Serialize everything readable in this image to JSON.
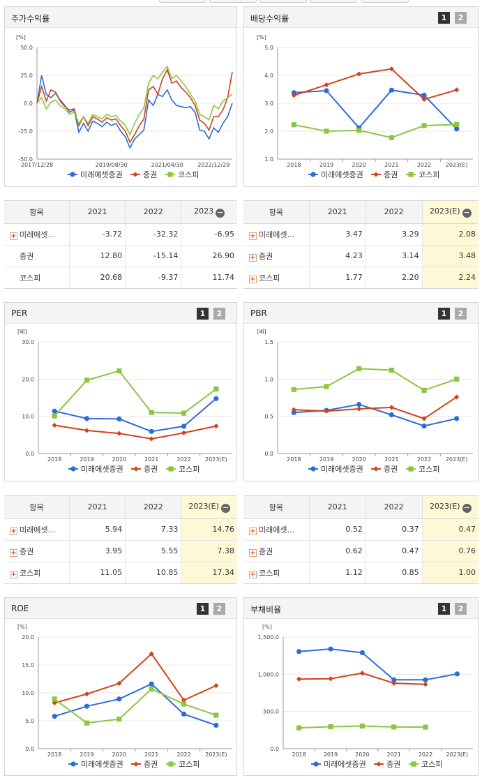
{
  "colors": {
    "mirae": "#2d6bd8",
    "sec": "#d2411a",
    "kospi": "#8cc63f"
  },
  "legend": [
    "미래에셋증권",
    "증권",
    "코스피"
  ],
  "pager": [
    "1",
    "2"
  ],
  "panels": {
    "stock": {
      "title": "주가수익률",
      "unit": "[%]",
      "y_ticks": [
        "50.0",
        "25.0",
        "0.0",
        "-25.0",
        "-50.0"
      ],
      "x_ticks": [
        "2017/12/28",
        "2019/08/30",
        "2021/04/30",
        "2022/12/29"
      ]
    },
    "dividend": {
      "title": "배당수익률",
      "unit": "[%]",
      "y_ticks": [
        "5.0",
        "4.0",
        "3.0",
        "2.0",
        "1.0"
      ],
      "x_ticks": [
        "2018",
        "2019",
        "2020",
        "2021",
        "2022",
        "2023(E)"
      ]
    },
    "per": {
      "title": "PER",
      "unit": "[배]",
      "y_ticks": [
        "30.0",
        "20.0",
        "10.0",
        "0.0"
      ],
      "x_ticks": [
        "2018",
        "2019",
        "2020",
        "2021",
        "2022",
        "2023(E)"
      ]
    },
    "pbr": {
      "title": "PBR",
      "unit": "[배]",
      "y_ticks": [
        "1.5",
        "1.0",
        "0.5",
        "0.0"
      ],
      "x_ticks": [
        "2018",
        "2019",
        "2020",
        "2021",
        "2022",
        "2023(E)"
      ]
    },
    "roe": {
      "title": "ROE",
      "unit": "[%]",
      "y_ticks": [
        "20.0",
        "15.0",
        "10.0",
        "5.0",
        "0.0"
      ],
      "x_ticks": [
        "2018",
        "2019",
        "2020",
        "2021",
        "2022",
        "2023(E)"
      ]
    },
    "debt": {
      "title": "부채비율",
      "unit": "[%]",
      "y_ticks": [
        "1,500.0",
        "1,000.0",
        "500.0",
        "0.0"
      ],
      "x_ticks": [
        "2018",
        "2019",
        "2020",
        "2021",
        "2022",
        "2023(E)"
      ]
    }
  },
  "tables": {
    "stock": {
      "headers": [
        "항목",
        "2021",
        "2022",
        "2023"
      ],
      "rows": [
        {
          "name": "미래에셋…",
          "plus": true,
          "values": [
            "-3.72",
            "-32.32",
            "-6.95"
          ]
        },
        {
          "name": "증권",
          "plus": false,
          "values": [
            "12.80",
            "-15.14",
            "26.90"
          ]
        },
        {
          "name": "코스피",
          "plus": false,
          "values": [
            "20.68",
            "-9.37",
            "11.74"
          ]
        }
      ]
    },
    "dividend": {
      "headers": [
        "항목",
        "2021",
        "2022",
        "2023(E)"
      ],
      "rows": [
        {
          "name": "미래에셋…",
          "plus": true,
          "values": [
            "3.47",
            "3.29",
            "2.08"
          ]
        },
        {
          "name": "증권",
          "plus": true,
          "values": [
            "4.23",
            "3.14",
            "3.48"
          ]
        },
        {
          "name": "코스피",
          "plus": true,
          "values": [
            "1.77",
            "2.20",
            "2.24"
          ]
        }
      ]
    },
    "per": {
      "headers": [
        "항목",
        "2021",
        "2022",
        "2023(E)"
      ],
      "rows": [
        {
          "name": "미래에셋…",
          "plus": true,
          "values": [
            "5.94",
            "7.33",
            "14.76"
          ]
        },
        {
          "name": "증권",
          "plus": true,
          "values": [
            "3.95",
            "5.55",
            "7.38"
          ]
        },
        {
          "name": "코스피",
          "plus": true,
          "values": [
            "11.05",
            "10.85",
            "17.34"
          ]
        }
      ]
    },
    "pbr": {
      "headers": [
        "항목",
        "2021",
        "2022",
        "2023(E)"
      ],
      "rows": [
        {
          "name": "미래에셋…",
          "plus": true,
          "values": [
            "0.52",
            "0.37",
            "0.47"
          ]
        },
        {
          "name": "증권",
          "plus": true,
          "values": [
            "0.62",
            "0.47",
            "0.76"
          ]
        },
        {
          "name": "코스피",
          "plus": true,
          "values": [
            "1.12",
            "0.85",
            "1.00"
          ]
        }
      ]
    }
  },
  "chart_data": [
    {
      "id": "stock",
      "type": "line",
      "title": "주가수익률",
      "ylabel": "[%]",
      "ylim": [
        -50,
        50
      ],
      "x_ticks": [
        "2017/12/28",
        "2019/08/30",
        "2021/04/30",
        "2022/12/29"
      ],
      "x": [
        "2017/12",
        "2018/01",
        "2018/02",
        "2018/03",
        "2018/04",
        "2018/05",
        "2018/06",
        "2018/07",
        "2018/08",
        "2018/09",
        "2018/10",
        "2018/11",
        "2018/12",
        "2019/02",
        "2019/04",
        "2019/06",
        "2019/08",
        "2019/10",
        "2019/12",
        "2020/02",
        "2020/03",
        "2020/04",
        "2020/06",
        "2020/08",
        "2020/10",
        "2020/12",
        "2021/01",
        "2021/02",
        "2021/04",
        "2021/06",
        "2021/08",
        "2021/10",
        "2021/12",
        "2022/02",
        "2022/04",
        "2022/06",
        "2022/08",
        "2022/10",
        "2022/12",
        "2023/02",
        "2023/04",
        "2023/06",
        "2023/07"
      ],
      "series": [
        {
          "name": "미래에셋증권",
          "values": [
            0,
            25,
            8,
            5,
            9,
            3,
            -2,
            -8,
            -6,
            -26,
            -18,
            -25,
            -16,
            -18,
            -21,
            -17,
            -20,
            -18,
            -25,
            -30,
            -40,
            -32,
            -28,
            -24,
            3,
            -2,
            8,
            6,
            12,
            3,
            -2,
            -3,
            -4,
            -3,
            -8,
            -24,
            -25,
            -32,
            -22,
            -26,
            -18,
            -12,
            0
          ]
        },
        {
          "name": "증권",
          "values": [
            0,
            15,
            2,
            12,
            10,
            2,
            -3,
            -6,
            -5,
            -20,
            -12,
            -20,
            -12,
            -14,
            -17,
            -13,
            -15,
            -14,
            -20,
            -25,
            -35,
            -28,
            -20,
            -14,
            12,
            15,
            8,
            22,
            30,
            18,
            20,
            14,
            10,
            5,
            -2,
            -15,
            -18,
            -24,
            -12,
            -12,
            -6,
            5,
            28
          ]
        },
        {
          "name": "코스피",
          "values": [
            0,
            5,
            -5,
            1,
            3,
            -2,
            -5,
            -10,
            -8,
            -18,
            -12,
            -18,
            -10,
            -12,
            -14,
            -10,
            -12,
            -11,
            -16,
            -20,
            -28,
            -18,
            -10,
            -4,
            18,
            25,
            22,
            28,
            33,
            22,
            25,
            20,
            15,
            8,
            2,
            -10,
            -12,
            -15,
            -2,
            -5,
            2,
            5,
            8
          ]
        }
      ]
    },
    {
      "id": "dividend",
      "type": "line",
      "title": "배당수익률",
      "ylabel": "[%]",
      "ylim": [
        1,
        5
      ],
      "categories": [
        "2018",
        "2019",
        "2020",
        "2021",
        "2022",
        "2023(E)"
      ],
      "series": [
        {
          "name": "미래에셋증권",
          "values": [
            3.38,
            3.45,
            2.12,
            3.47,
            3.29,
            2.08
          ]
        },
        {
          "name": "증권",
          "values": [
            3.28,
            3.66,
            4.05,
            4.23,
            3.14,
            3.48
          ]
        },
        {
          "name": "코스피",
          "values": [
            2.23,
            2.0,
            2.03,
            1.77,
            2.2,
            2.24
          ]
        }
      ]
    },
    {
      "id": "per",
      "type": "line",
      "title": "PER",
      "ylabel": "[배]",
      "ylim": [
        0,
        30
      ],
      "categories": [
        "2018",
        "2019",
        "2020",
        "2021",
        "2022",
        "2023(E)"
      ],
      "series": [
        {
          "name": "미래에셋증권",
          "values": [
            11.4,
            9.4,
            9.3,
            5.94,
            7.33,
            14.76
          ]
        },
        {
          "name": "증권",
          "values": [
            7.6,
            6.2,
            5.4,
            3.95,
            5.55,
            7.38
          ]
        },
        {
          "name": "코스피",
          "values": [
            10.1,
            19.7,
            22.2,
            11.05,
            10.85,
            17.34
          ]
        }
      ]
    },
    {
      "id": "pbr",
      "type": "line",
      "title": "PBR",
      "ylabel": "[배]",
      "ylim": [
        0,
        1.5
      ],
      "categories": [
        "2018",
        "2019",
        "2020",
        "2021",
        "2022",
        "2023(E)"
      ],
      "series": [
        {
          "name": "미래에셋증권",
          "values": [
            0.55,
            0.58,
            0.66,
            0.52,
            0.37,
            0.47
          ]
        },
        {
          "name": "증권",
          "values": [
            0.59,
            0.57,
            0.6,
            0.62,
            0.47,
            0.76
          ]
        },
        {
          "name": "코스피",
          "values": [
            0.86,
            0.9,
            1.14,
            1.12,
            0.85,
            1.0
          ]
        }
      ]
    },
    {
      "id": "roe",
      "type": "line",
      "title": "ROE",
      "ylabel": "[%]",
      "ylim": [
        0,
        20
      ],
      "categories": [
        "2018",
        "2019",
        "2020",
        "2021",
        "2022",
        "2023(E)"
      ],
      "series": [
        {
          "name": "미래에셋증권",
          "values": [
            5.8,
            7.6,
            8.9,
            11.6,
            6.2,
            4.2
          ]
        },
        {
          "name": "증권",
          "values": [
            8.2,
            9.8,
            11.7,
            17.0,
            8.7,
            11.3
          ]
        },
        {
          "name": "코스피",
          "values": [
            8.9,
            4.6,
            5.3,
            10.7,
            8.0,
            6.0
          ]
        }
      ]
    },
    {
      "id": "debt",
      "type": "line",
      "title": "부채비율",
      "ylabel": "[%]",
      "ylim": [
        0,
        1500
      ],
      "categories": [
        "2018",
        "2019",
        "2020",
        "2021",
        "2022",
        "2023(E)"
      ],
      "series": [
        {
          "name": "미래에셋증권",
          "values": [
            1305,
            1340,
            1290,
            925,
            925,
            1005
          ]
        },
        {
          "name": "증권",
          "values": [
            935,
            940,
            1015,
            880,
            865,
            null
          ]
        },
        {
          "name": "코스피",
          "values": [
            280,
            295,
            305,
            292,
            290,
            null
          ]
        }
      ]
    }
  ]
}
